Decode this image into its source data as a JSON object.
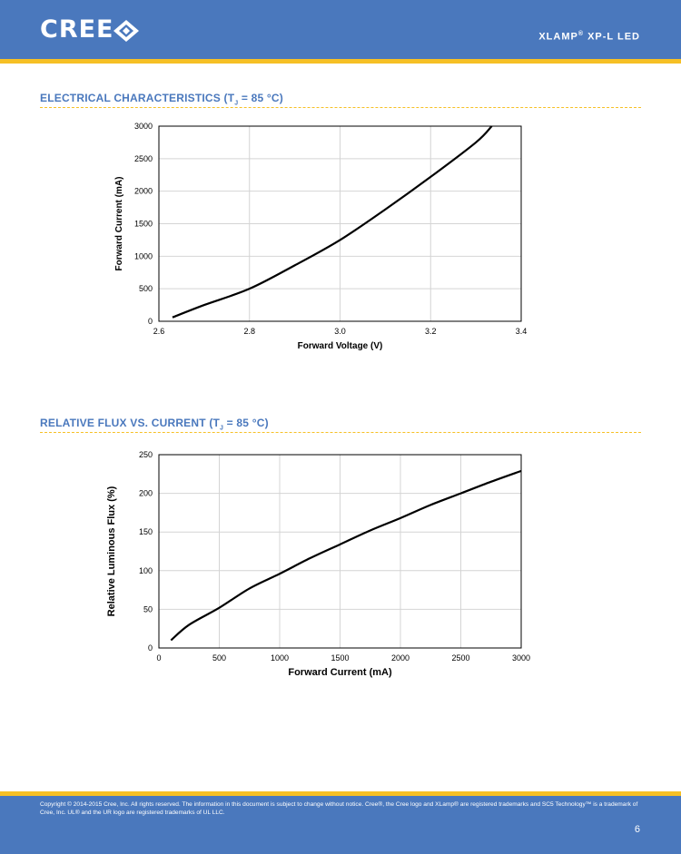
{
  "header": {
    "logo_text": "CREE",
    "logo_icon": "cree-diamond-logo",
    "product_name": "XLAMP",
    "product_mark": "®",
    "product_suffix": " XP-L LED"
  },
  "sections": [
    {
      "title_main": "ELECTRICAL CHARACTERISTICS (T",
      "title_sub": "J",
      "title_end": " = 85 °C)"
    },
    {
      "title_main": "RELATIVE FLUX VS. CURRENT (T",
      "title_sub": "J",
      "title_end": " = 85 °C)"
    }
  ],
  "chart_data": [
    {
      "type": "line",
      "xlabel": "Forward Voltage (V)",
      "ylabel": "Forward Current (mA)",
      "xlim": [
        2.6,
        3.4
      ],
      "ylim": [
        0,
        3000
      ],
      "xticks": [
        "2.6",
        "2.8",
        "3.0",
        "3.2",
        "3.4"
      ],
      "yticks": [
        "0",
        "500",
        "1000",
        "1500",
        "2000",
        "2500",
        "3000"
      ],
      "grid": true,
      "series": [
        {
          "x": [
            2.63,
            2.7,
            2.8,
            2.9,
            3.0,
            3.1,
            3.2,
            3.3,
            3.335
          ],
          "y": [
            60,
            250,
            500,
            860,
            1250,
            1720,
            2220,
            2750,
            3000
          ]
        }
      ]
    },
    {
      "type": "line",
      "xlabel": "Forward Current (mA)",
      "ylabel": "Relative Luminous Flux (%)",
      "xlim": [
        0,
        3000
      ],
      "ylim": [
        0,
        250
      ],
      "xticks": [
        "0",
        "500",
        "1000",
        "1500",
        "2000",
        "2500",
        "3000"
      ],
      "yticks": [
        "0",
        "50",
        "100",
        "150",
        "200",
        "250"
      ],
      "grid": true,
      "series": [
        {
          "x": [
            100,
            250,
            500,
            750,
            1000,
            1250,
            1500,
            1750,
            2000,
            2250,
            2500,
            2750,
            3000
          ],
          "y": [
            10,
            30,
            52,
            77,
            96,
            116,
            134,
            152,
            168,
            185,
            200,
            215,
            229
          ]
        }
      ]
    }
  ],
  "footer": {
    "copyright": "Copyright © 2014-2015 Cree, Inc. All rights reserved. The information in this document is subject to change without notice. Cree®, the Cree logo and XLamp® are registered trademarks and SC5 Technology™ is a trademark of Cree, Inc. UL® and the UR logo are registered trademarks of UL LLC.",
    "page_number": "6"
  },
  "colors": {
    "brand_blue": "#4a78bd",
    "accent_yellow": "#f6c025",
    "curve": "#000000",
    "grid": "#d4d4d4"
  }
}
